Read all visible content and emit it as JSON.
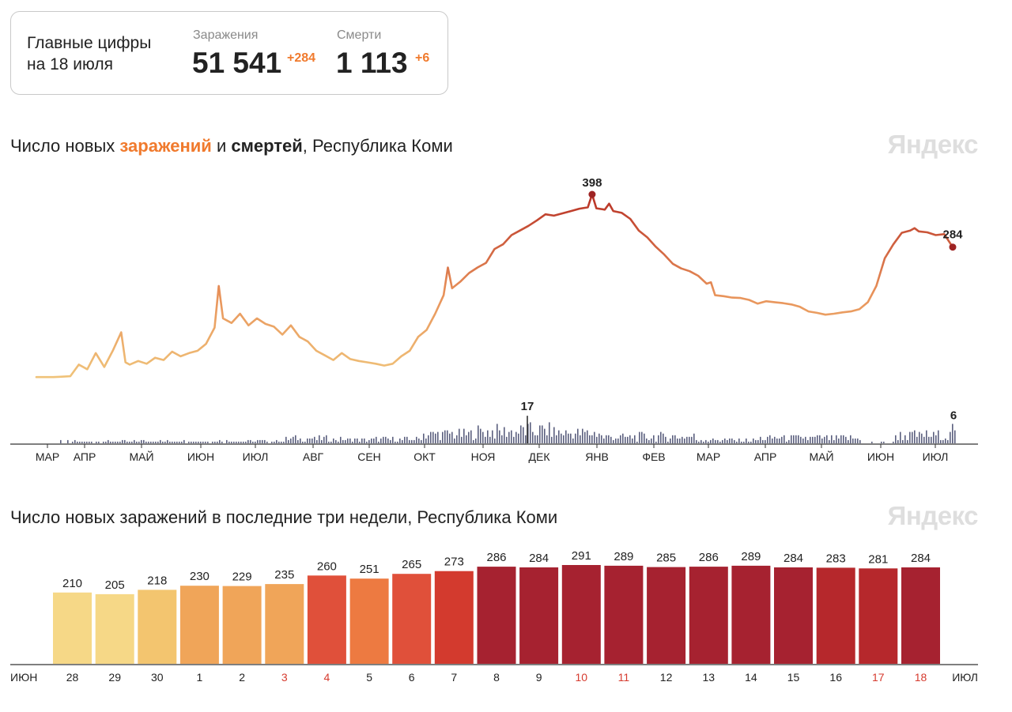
{
  "summary": {
    "title_line1": "Главные цифры",
    "title_line2": "на 18 июля",
    "infections_label": "Заражения",
    "infections_value": "51 541",
    "infections_delta": "+284",
    "deaths_label": "Смерти",
    "deaths_value": "1 113",
    "deaths_delta": "+6"
  },
  "colors": {
    "accent_infections": "#f07a2d",
    "deaths_bar": "#5b5f7e",
    "peak_red": "#9e2323",
    "line_low": "#f0c47a",
    "line_high": "#b52b22",
    "weekend_red": "#d63b2f",
    "brand_gray": "#dedede"
  },
  "brand_text": "Яндекс",
  "chart1": {
    "title_pre": "Число новых ",
    "title_inf": "заражений",
    "title_mid": " и ",
    "title_death": "смертей",
    "title_post": ", Республика Коми",
    "months": [
      "МАР",
      "АПР",
      "МАЙ",
      "ИЮН",
      "ИЮЛ",
      "АВГ",
      "СЕН",
      "ОКТ",
      "НОЯ",
      "ДЕК",
      "ЯНВ",
      "ФЕВ",
      "МАР",
      "АПР",
      "МАЙ",
      "ИЮН",
      "ИЮЛ"
    ],
    "peak_infections_label": "398",
    "last_infections_label": "284",
    "peak_deaths_label": "17",
    "last_deaths_label": "6"
  },
  "chart_data": [
    {
      "type": "line",
      "title": "Число новых заражений и смертей, Республика Коми",
      "x_range": [
        "2020-03",
        "2021-07-18"
      ],
      "series": [
        {
          "name": "заражения",
          "values": [
            [
              0,
              3
            ],
            [
              1,
              3
            ],
            [
              2,
              3
            ],
            [
              3,
              4
            ],
            [
              4,
              5
            ],
            [
              5,
              30
            ],
            [
              6,
              20
            ],
            [
              7,
              55
            ],
            [
              8,
              25
            ],
            [
              9,
              60
            ],
            [
              10,
              100
            ],
            [
              10.5,
              35
            ],
            [
              11,
              30
            ],
            [
              12,
              38
            ],
            [
              13,
              32
            ],
            [
              14,
              45
            ],
            [
              15,
              40
            ],
            [
              16,
              58
            ],
            [
              17,
              48
            ],
            [
              18,
              55
            ],
            [
              19,
              60
            ],
            [
              20,
              75
            ],
            [
              21,
              110
            ],
            [
              21.5,
              200
            ],
            [
              22,
              130
            ],
            [
              23,
              120
            ],
            [
              24,
              140
            ],
            [
              25,
              115
            ],
            [
              26,
              130
            ],
            [
              27,
              118
            ],
            [
              28,
              112
            ],
            [
              29,
              95
            ],
            [
              30,
              115
            ],
            [
              31,
              90
            ],
            [
              32,
              80
            ],
            [
              33,
              60
            ],
            [
              34,
              50
            ],
            [
              35,
              40
            ],
            [
              36,
              55
            ],
            [
              37,
              42
            ],
            [
              38,
              38
            ],
            [
              39,
              35
            ],
            [
              40,
              32
            ],
            [
              41,
              28
            ],
            [
              42,
              32
            ],
            [
              43,
              48
            ],
            [
              44,
              60
            ],
            [
              45,
              90
            ],
            [
              46,
              105
            ],
            [
              47,
              140
            ],
            [
              48,
              180
            ],
            [
              48.5,
              240
            ],
            [
              49,
              195
            ],
            [
              50,
              210
            ],
            [
              51,
              228
            ],
            [
              52,
              240
            ],
            [
              53,
              250
            ],
            [
              54,
              280
            ],
            [
              55,
              290
            ],
            [
              56,
              310
            ],
            [
              57,
              320
            ],
            [
              58,
              330
            ],
            [
              59,
              342
            ],
            [
              60,
              355
            ],
            [
              61,
              352
            ],
            [
              62,
              357
            ],
            [
              63,
              362
            ],
            [
              64,
              367
            ],
            [
              65,
              370
            ],
            [
              65.5,
              398
            ],
            [
              66,
              368
            ],
            [
              67,
              365
            ],
            [
              67.5,
              378
            ],
            [
              68,
              362
            ],
            [
              69,
              358
            ],
            [
              70,
              345
            ],
            [
              71,
              320
            ],
            [
              72,
              305
            ],
            [
              73,
              285
            ],
            [
              74,
              268
            ],
            [
              75,
              248
            ],
            [
              76,
              238
            ],
            [
              77,
              232
            ],
            [
              78,
              222
            ],
            [
              79,
              205
            ],
            [
              79.5,
              208
            ],
            [
              80,
              180
            ],
            [
              81,
              178
            ],
            [
              82,
              175
            ],
            [
              83,
              174
            ],
            [
              84,
              170
            ],
            [
              85,
              162
            ],
            [
              86,
              167
            ],
            [
              87,
              165
            ],
            [
              88,
              163
            ],
            [
              89,
              160
            ],
            [
              90,
              155
            ],
            [
              91,
              145
            ],
            [
              92,
              142
            ],
            [
              93,
              138
            ],
            [
              94,
              140
            ],
            [
              95,
              143
            ],
            [
              96,
              145
            ],
            [
              97,
              150
            ],
            [
              98,
              165
            ],
            [
              99,
              200
            ],
            [
              100,
              260
            ],
            [
              101,
              290
            ],
            [
              102,
              315
            ],
            [
              103,
              320
            ],
            [
              103.5,
              325
            ],
            [
              104,
              318
            ],
            [
              105,
              316
            ],
            [
              106,
              310
            ],
            [
              107,
              312
            ],
            [
              108,
              284
            ]
          ]
        },
        {
          "name": "смерти",
          "peak": 17,
          "last": 6
        }
      ]
    },
    {
      "type": "bar",
      "title": "Число новых заражений в последние три недели, Республика Коми",
      "categories": [
        "28",
        "29",
        "30",
        "1",
        "2",
        "3",
        "4",
        "5",
        "6",
        "7",
        "8",
        "9",
        "10",
        "11",
        "12",
        "13",
        "14",
        "15",
        "16",
        "17",
        "18"
      ],
      "values": [
        210,
        205,
        218,
        230,
        229,
        235,
        260,
        251,
        265,
        273,
        286,
        284,
        291,
        289,
        285,
        286,
        289,
        284,
        283,
        281,
        284
      ],
      "weekend": [
        false,
        false,
        false,
        false,
        false,
        true,
        true,
        false,
        false,
        false,
        false,
        false,
        true,
        true,
        false,
        false,
        false,
        false,
        false,
        true,
        true
      ],
      "start_month_label": "ИЮН",
      "end_month_label": "ИЮЛ"
    }
  ]
}
